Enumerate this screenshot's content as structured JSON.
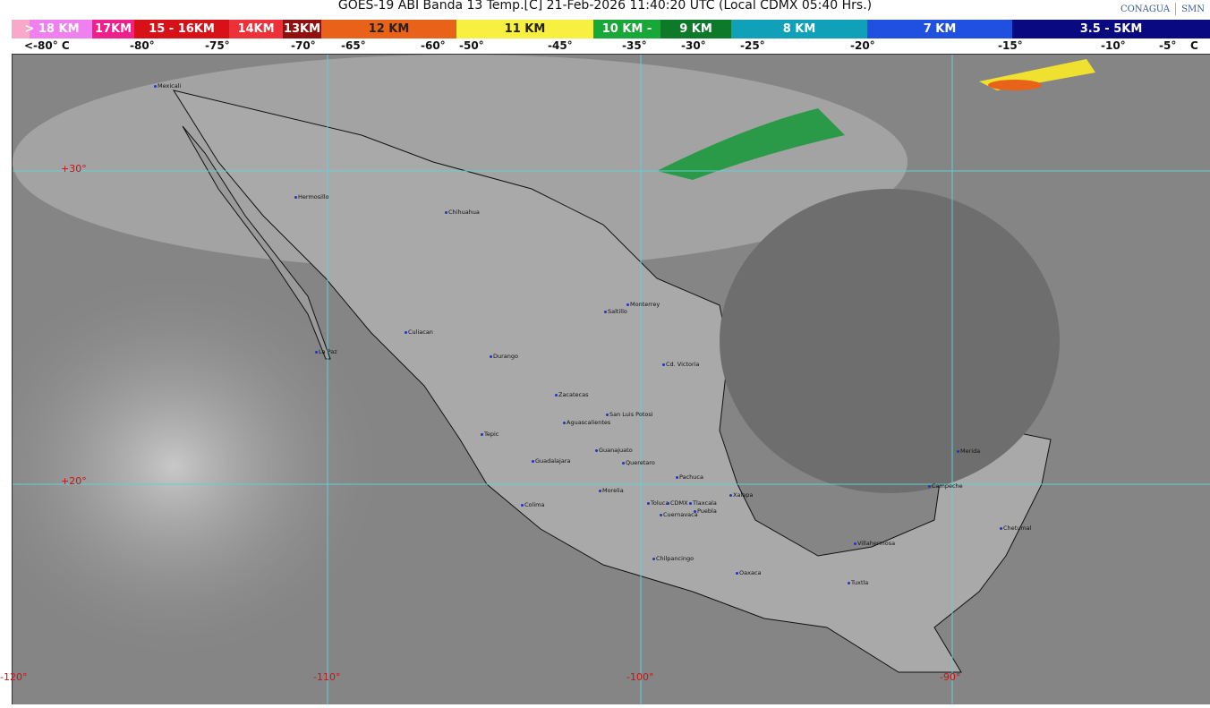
{
  "header": {
    "title": "GOES-19 ABI Banda 13 Temp.[C] 21-Feb-2026 11:40:20 UTC (Local CDMX  05:40 Hrs.)",
    "logos": [
      "CONAGUA",
      "SMN"
    ]
  },
  "scale": {
    "segments": [
      {
        "label": "> 18 KM",
        "color": "#f080f0"
      },
      {
        "label": "17KM",
        "color": "#f0208a"
      },
      {
        "label": "15 - 16KM",
        "color": "#d81018"
      },
      {
        "label": "14KM",
        "color": "#ee3038"
      },
      {
        "label": "13KM",
        "color": "#901010"
      },
      {
        "label": "12 KM",
        "color": "#e8621a"
      },
      {
        "label": "11 KM",
        "color": "#f8f040"
      },
      {
        "label": "10 KM -",
        "color": "#18a838"
      },
      {
        "label": "9 KM",
        "color": "#0d7a2a"
      },
      {
        "label": "8 KM",
        "color": "#10a0b8"
      },
      {
        "label": "7 KM",
        "color": "#2050e0"
      },
      {
        "label": "3.5 - 5KM",
        "color": "#0a0a80"
      }
    ],
    "temps": [
      "<-80° C",
      "-80°",
      "-75°",
      "-70°",
      "-65°",
      "-60°",
      "-50°",
      "-45°",
      "-35°",
      "-30°",
      "-25°",
      "-20°",
      "-15°",
      "-10°",
      "-5°",
      "C"
    ]
  },
  "grid": {
    "lat": [
      "+30°",
      "+20°"
    ],
    "lon": [
      "-120°",
      "-110°",
      "-100°",
      "-90°"
    ]
  },
  "cities": [
    "Mexicali",
    "Hermosillo",
    "Chihuahua",
    "La Paz",
    "Culiacan",
    "Durango",
    "Saltillo",
    "Monterrey",
    "Cd. Victoria",
    "Zacatecas",
    "San Luis Potosi",
    "Aguascalientes",
    "Tepic",
    "Guanajuato",
    "Guadalajara",
    "Queretaro",
    "Pachuca",
    "Morelia",
    "Xalapa",
    "Colima",
    "Toluca",
    "CDMX",
    "Tlaxcala",
    "Puebla",
    "Cuernavaca",
    "Chilpancingo",
    "Oaxaca",
    "Villahermosa",
    "Tuxtla",
    "Merida",
    "Campeche",
    "Chetumal"
  ]
}
